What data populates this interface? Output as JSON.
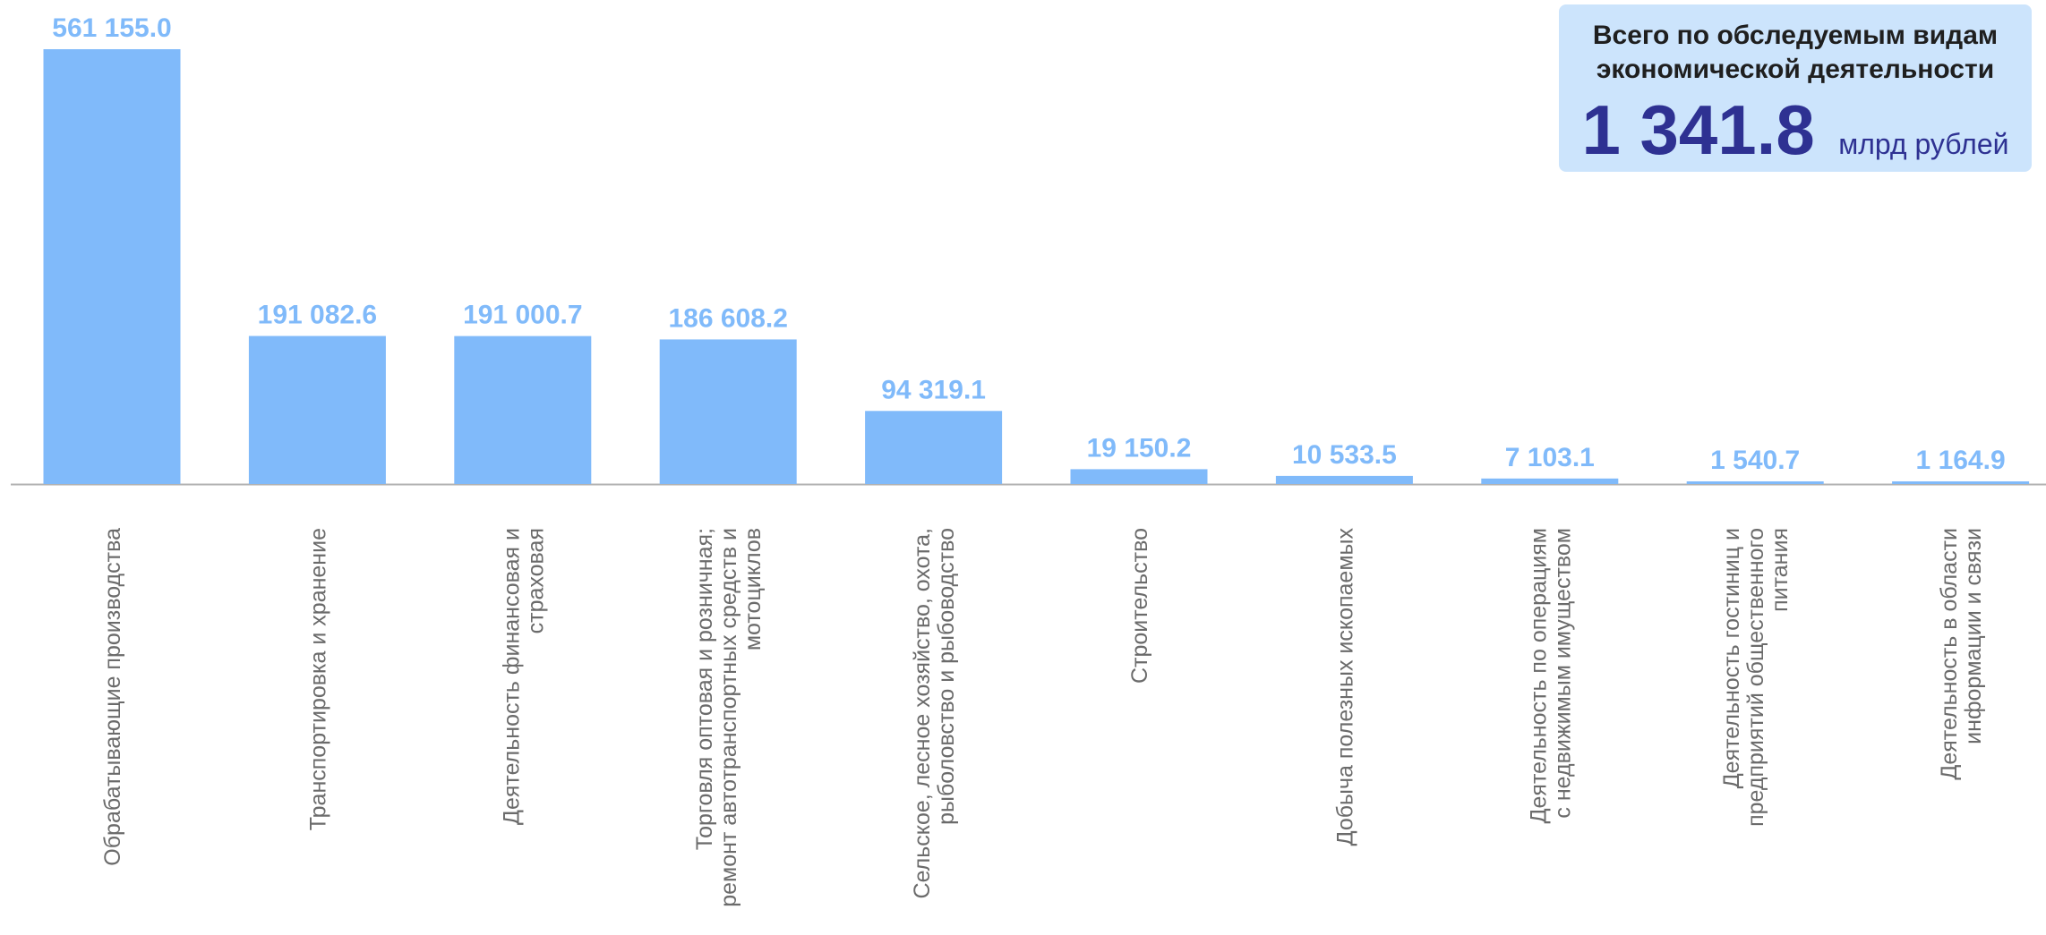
{
  "chart_data": {
    "type": "bar",
    "categories": [
      [
        "Обрабатывающие производства"
      ],
      [
        "Транспортировка и хранение"
      ],
      [
        "Деятельность финансовая и",
        "страховая"
      ],
      [
        "Торговля оптовая и розничная;",
        "ремонт автотранспортных средств и",
        "мотоциклов"
      ],
      [
        "Сельское, лесное хозяйство, охота,",
        "рыболовство и рыбоводство"
      ],
      [
        "Строительство"
      ],
      [
        "Добыча полезных ископаемых"
      ],
      [
        "Деятельность по операциям",
        "с недвижимым имуществом"
      ],
      [
        "Деятельность гостиниц и",
        "предприятий общественного",
        "питания"
      ],
      [
        "Деятельность в области",
        "информации и связи"
      ]
    ],
    "values": [
      561155.0,
      191082.6,
      191000.7,
      186608.2,
      94319.1,
      19150.2,
      10533.5,
      7103.1,
      1540.7,
      1164.9
    ],
    "value_labels": [
      "561 155.0",
      "191 082.6",
      "191 000.7",
      "186 608.2",
      "94 319.1",
      "19 150.2",
      "10 533.5",
      "7 103.1",
      "1 540.7",
      "1 164.9"
    ],
    "ylim": [
      0,
      561155.0
    ],
    "grid": false,
    "legend": "none",
    "bar_color": "#80bafa",
    "label_color": "#80bafa",
    "axis_color": "#b3b3b3"
  },
  "summary": {
    "title_line1": "Всего по обследуемым видам",
    "title_line2": "экономической деятельности",
    "value": "1 341.8",
    "unit": "млрд рублей",
    "box_color": "#cce4fc",
    "value_color": "#2e3192"
  }
}
